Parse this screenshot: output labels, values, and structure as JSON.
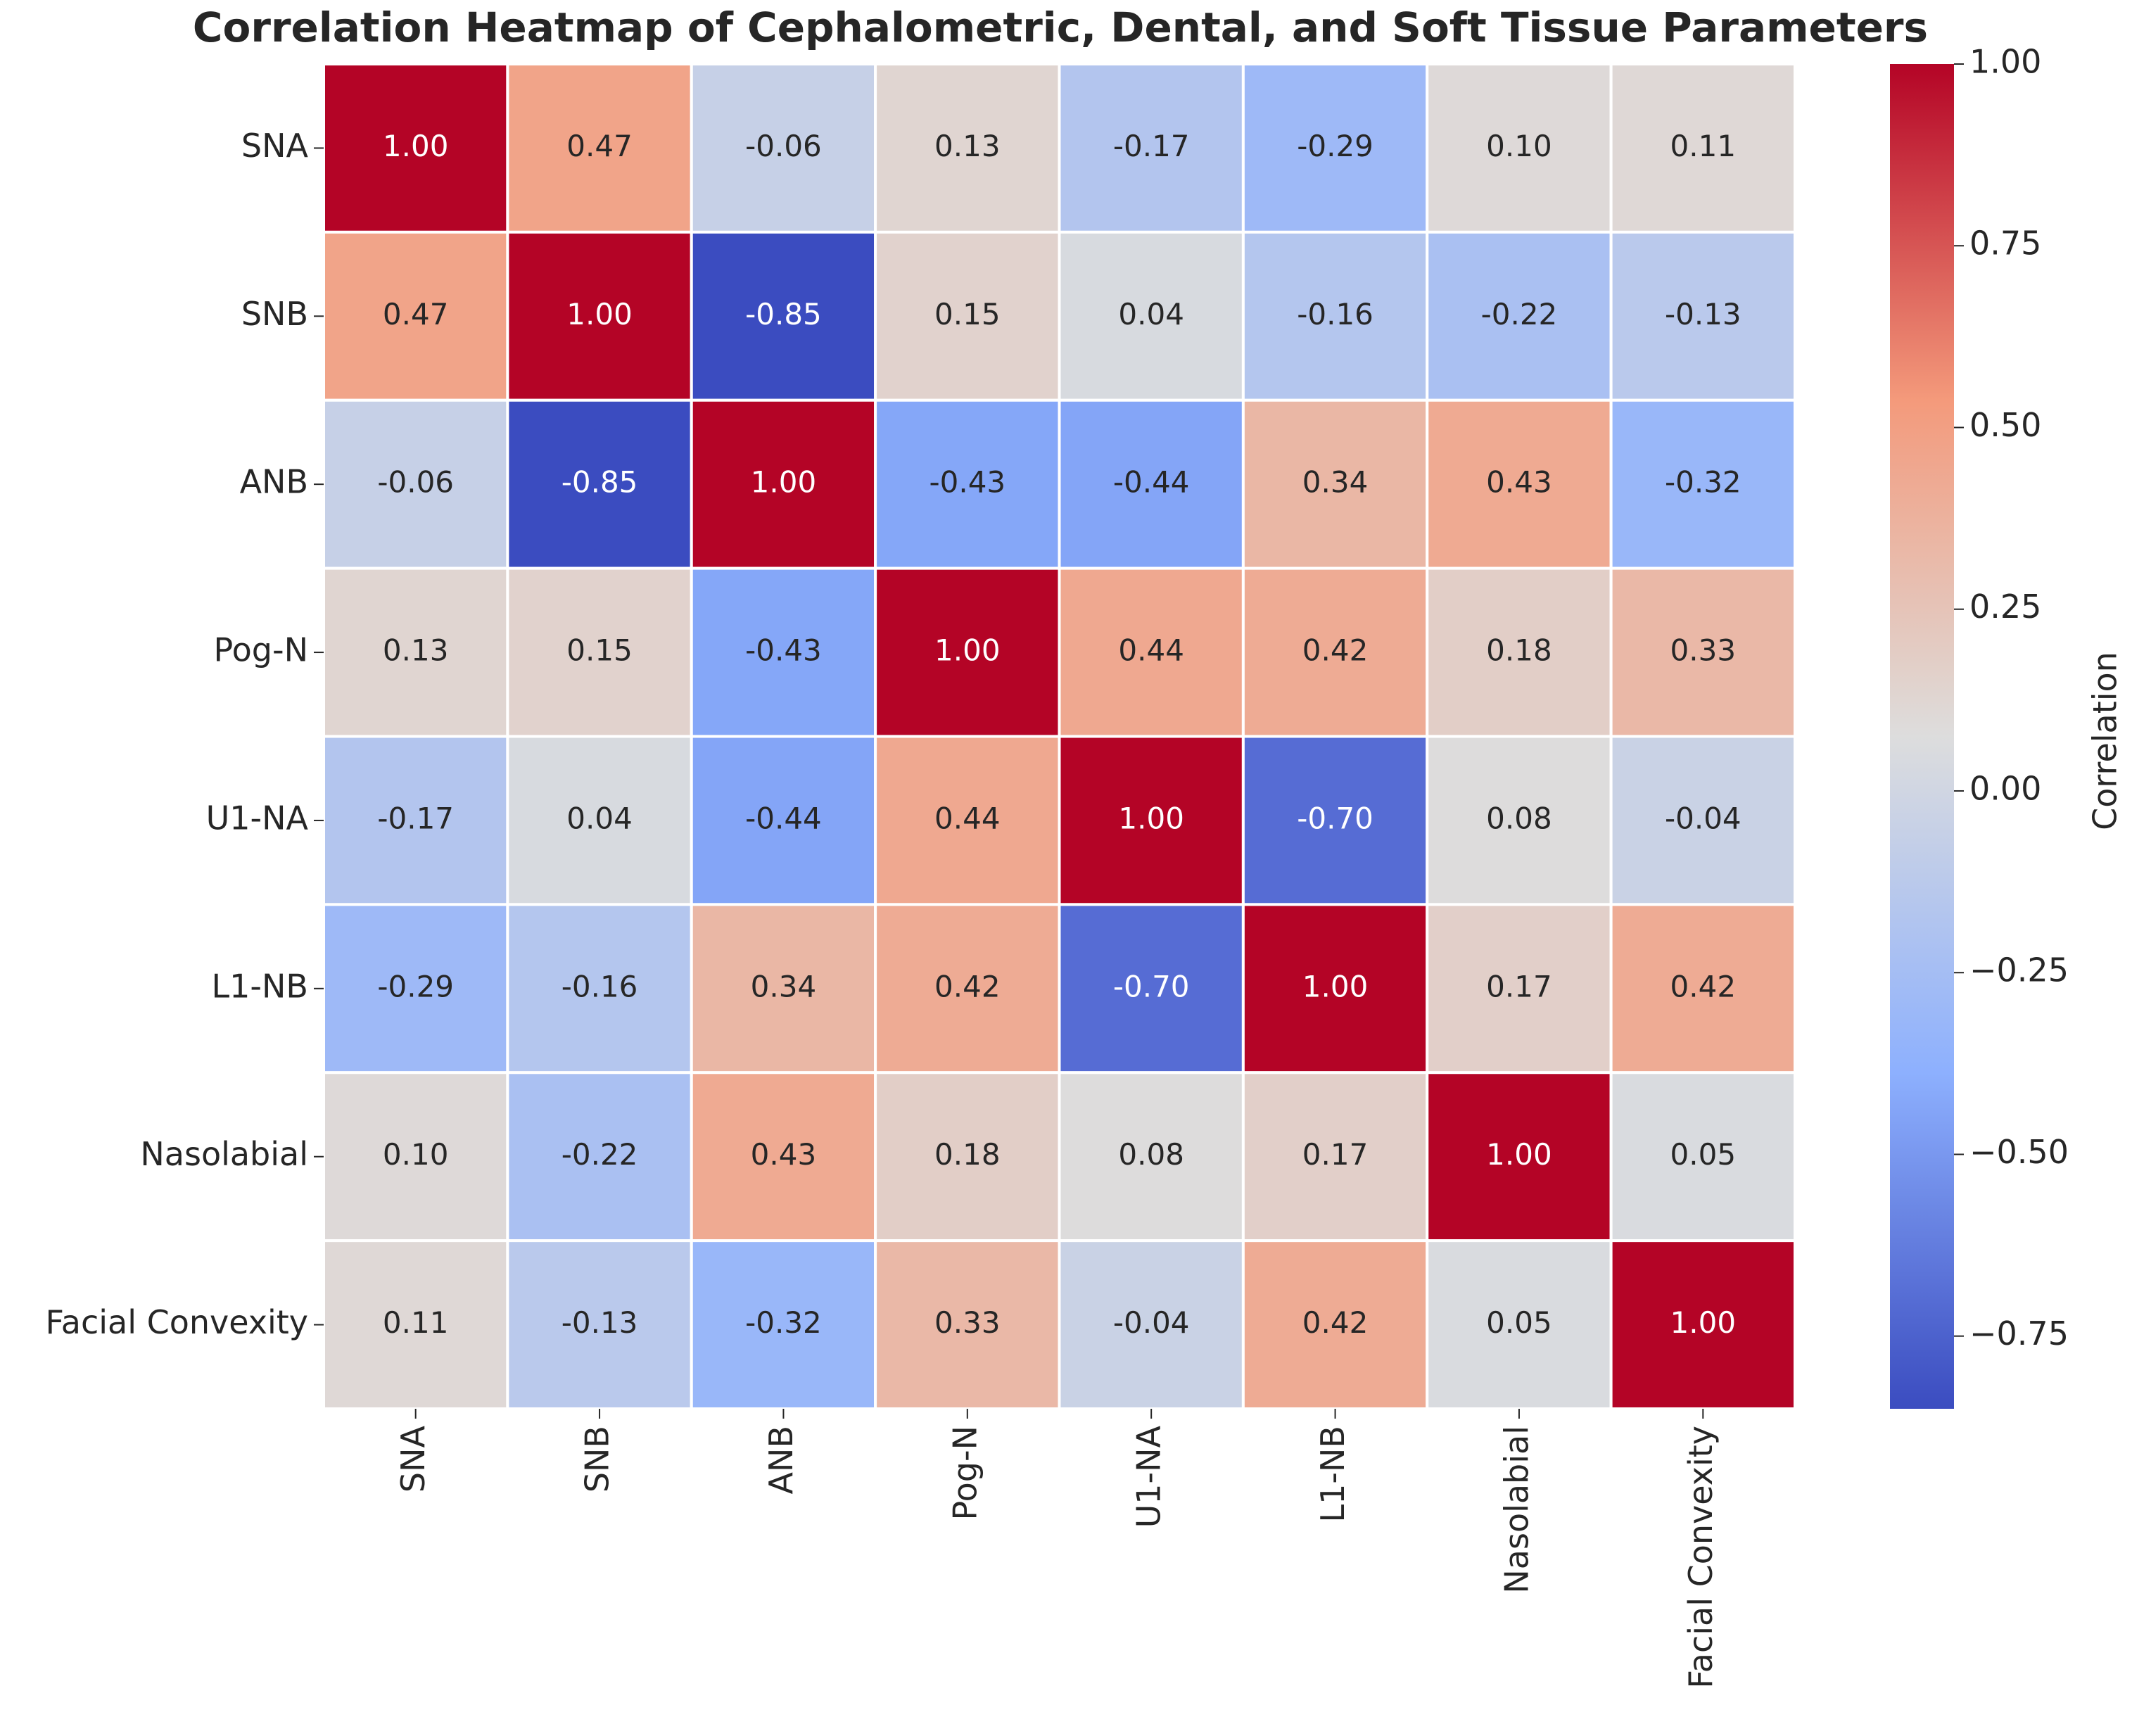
{
  "chart_data": {
    "type": "heatmap",
    "title": "Correlation Heatmap of Cephalometric, Dental, and Soft Tissue Parameters",
    "categories": [
      "SNA",
      "SNB",
      "ANB",
      "Pog-N",
      "U1-NA",
      "L1-NB",
      "Nasolabial",
      "Facial Convexity"
    ],
    "values": [
      [
        1.0,
        0.47,
        -0.06,
        0.13,
        -0.17,
        -0.29,
        0.1,
        0.11
      ],
      [
        0.47,
        1.0,
        -0.85,
        0.15,
        0.04,
        -0.16,
        -0.22,
        -0.13
      ],
      [
        -0.06,
        -0.85,
        1.0,
        -0.43,
        -0.44,
        0.34,
        0.43,
        -0.32
      ],
      [
        0.13,
        0.15,
        -0.43,
        1.0,
        0.44,
        0.42,
        0.18,
        0.33
      ],
      [
        -0.17,
        0.04,
        -0.44,
        0.44,
        1.0,
        -0.7,
        0.08,
        -0.04
      ],
      [
        -0.29,
        -0.16,
        0.34,
        0.42,
        -0.7,
        1.0,
        0.17,
        0.42
      ],
      [
        0.1,
        -0.22,
        0.43,
        0.18,
        0.08,
        0.17,
        1.0,
        0.05
      ],
      [
        0.11,
        -0.13,
        -0.32,
        0.33,
        -0.04,
        0.42,
        0.05,
        1.0
      ]
    ],
    "value_labels": [
      [
        "1.00",
        "0.47",
        "-0.06",
        "0.13",
        "-0.17",
        "-0.29",
        "0.10",
        "0.11"
      ],
      [
        "0.47",
        "1.00",
        "-0.85",
        "0.15",
        "0.04",
        "-0.16",
        "-0.22",
        "-0.13"
      ],
      [
        "-0.06",
        "-0.85",
        "1.00",
        "-0.43",
        "-0.44",
        "0.34",
        "0.43",
        "-0.32"
      ],
      [
        "0.13",
        "0.15",
        "-0.43",
        "1.00",
        "0.44",
        "0.42",
        "0.18",
        "0.33"
      ],
      [
        "-0.17",
        "0.04",
        "-0.44",
        "0.44",
        "1.00",
        "-0.70",
        "0.08",
        "-0.04"
      ],
      [
        "-0.29",
        "-0.16",
        "0.34",
        "0.42",
        "-0.70",
        "1.00",
        "0.17",
        "0.42"
      ],
      [
        "0.10",
        "-0.22",
        "0.43",
        "0.18",
        "0.08",
        "0.17",
        "1.00",
        "0.05"
      ],
      [
        "0.11",
        "-0.13",
        "-0.32",
        "0.33",
        "-0.04",
        "0.42",
        "0.05",
        "1.00"
      ]
    ],
    "colormap": "coolwarm",
    "colorbar": {
      "label": "Correlation",
      "lim": [
        -0.85,
        1.0
      ],
      "ticks": [
        {
          "value": -0.75,
          "label": "−0.75"
        },
        {
          "value": -0.5,
          "label": "−0.50"
        },
        {
          "value": -0.25,
          "label": "−0.25"
        },
        {
          "value": 0,
          "label": "0.00"
        },
        {
          "value": 0.25,
          "label": "0.25"
        },
        {
          "value": 0.5,
          "label": "0.50"
        },
        {
          "value": 0.75,
          "label": "0.75"
        },
        {
          "value": 1.0,
          "label": "1.00"
        }
      ]
    }
  }
}
